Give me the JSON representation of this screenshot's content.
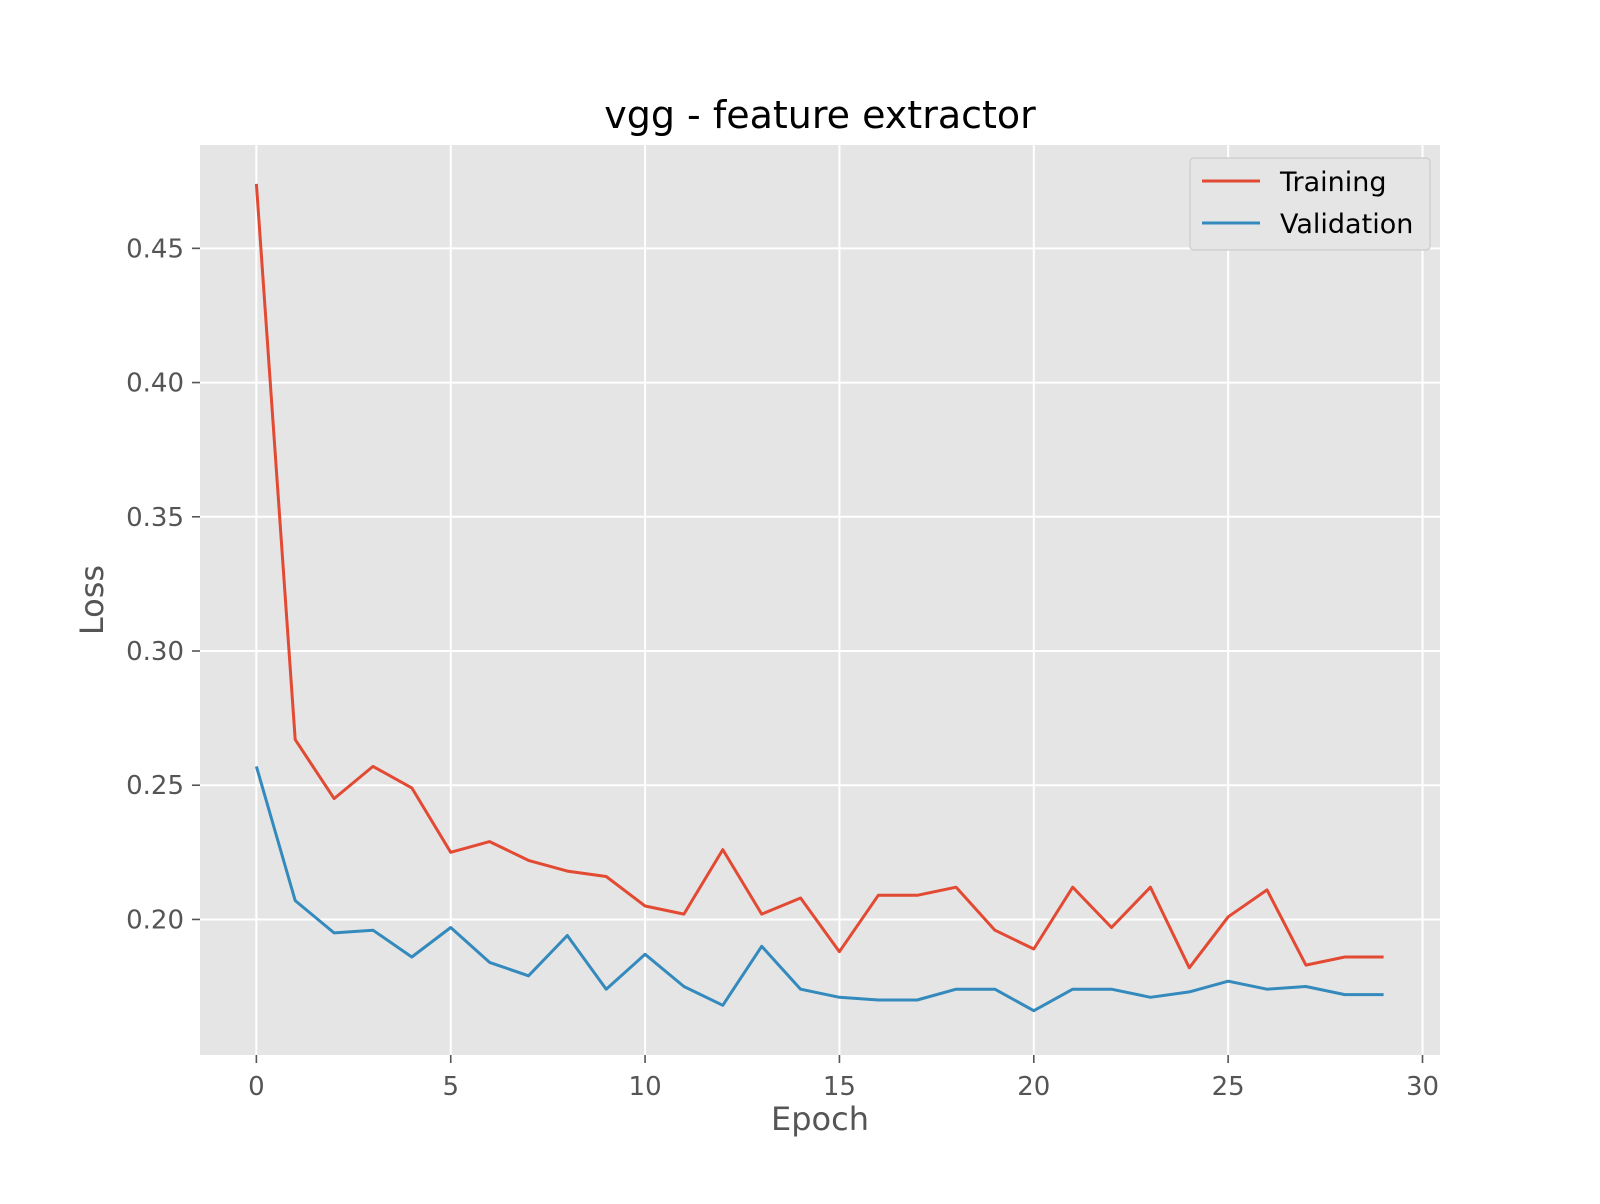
{
  "chart_data": {
    "type": "line",
    "title": "vgg - feature extractor",
    "xlabel": "Epoch",
    "ylabel": "Loss",
    "xlim": [
      -1.45,
      30.45
    ],
    "ylim": [
      0.1495,
      0.4885
    ],
    "x_ticks": [
      0,
      5,
      10,
      15,
      20,
      25,
      30
    ],
    "y_ticks": [
      0.2,
      0.25,
      0.3,
      0.35,
      0.4,
      0.45
    ],
    "y_tick_labels": [
      "0.20",
      "0.25",
      "0.30",
      "0.35",
      "0.40",
      "0.45"
    ],
    "grid": true,
    "legend_position": "top-right",
    "background": "#e5e5e5",
    "x": [
      0,
      1,
      2,
      3,
      4,
      5,
      6,
      7,
      8,
      9,
      10,
      11,
      12,
      13,
      14,
      15,
      16,
      17,
      18,
      19,
      20,
      21,
      22,
      23,
      24,
      25,
      26,
      27,
      28,
      29
    ],
    "series": [
      {
        "name": "Training",
        "color": "#e24a33",
        "values": [
          0.474,
          0.267,
          0.245,
          0.257,
          0.249,
          0.225,
          0.229,
          0.222,
          0.218,
          0.216,
          0.205,
          0.202,
          0.226,
          0.202,
          0.208,
          0.188,
          0.209,
          0.209,
          0.212,
          0.196,
          0.189,
          0.212,
          0.197,
          0.212,
          0.182,
          0.201,
          0.211,
          0.183,
          0.186,
          0.186
        ]
      },
      {
        "name": "Validation",
        "color": "#348abd",
        "values": [
          0.257,
          0.207,
          0.195,
          0.196,
          0.186,
          0.197,
          0.184,
          0.179,
          0.194,
          0.174,
          0.187,
          0.175,
          0.168,
          0.19,
          0.174,
          0.171,
          0.17,
          0.17,
          0.174,
          0.174,
          0.166,
          0.174,
          0.174,
          0.171,
          0.173,
          0.177,
          0.174,
          0.175,
          0.172,
          0.172
        ]
      }
    ]
  }
}
